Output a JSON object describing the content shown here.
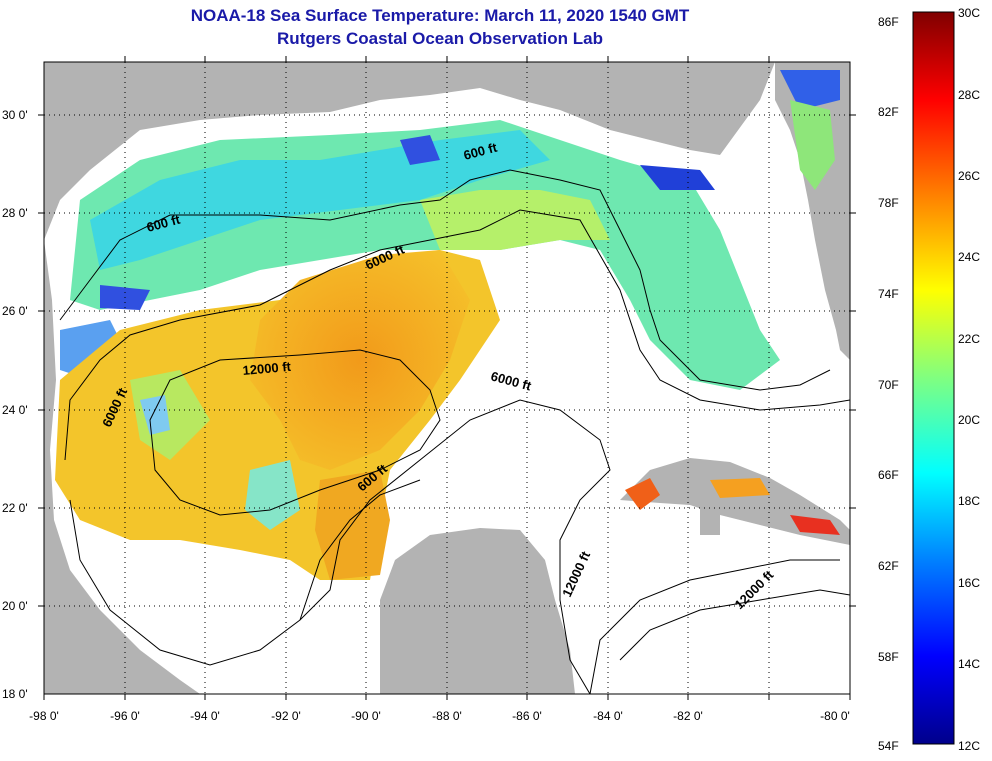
{
  "title_line1": "NOAA-18 Sea Surface Temperature:  March 11, 2020 1540 GMT",
  "title_line2": "Rutgers Coastal Ocean Observation Lab",
  "map": {
    "lat_labels": [
      "30 0'",
      "28 0'",
      "26 0'",
      "24 0'",
      "22 0'",
      "20 0'",
      "18 0'"
    ],
    "lon_labels": [
      "-98 0'",
      "-96 0'",
      "-94 0'",
      "-92 0'",
      "-90 0'",
      "-88 0'",
      "-86 0'",
      "-84 0'",
      "-82 0'",
      "-80 0'"
    ],
    "contour_labels": [
      "600 ft",
      "600 ft",
      "6000 ft",
      "12000 ft",
      "6000 ft",
      "6000 ft",
      "600 ft",
      "12000 ft",
      "12000 ft"
    ],
    "colors": {
      "land": "#b3b3b3",
      "cloud": "#ffffff"
    }
  },
  "colorbar": {
    "fahrenheit_labels": [
      "86F",
      "82F",
      "78F",
      "74F",
      "70F",
      "66F",
      "62F",
      "58F",
      "54F"
    ],
    "celsius_labels": [
      "30C",
      "28C",
      "26C",
      "24C",
      "22C",
      "20C",
      "18C",
      "16C",
      "14C",
      "12C"
    ],
    "gradient": [
      "#00008b",
      "#0000ff",
      "#0080ff",
      "#00ffff",
      "#80ff80",
      "#ffff00",
      "#ff8000",
      "#ff0000",
      "#800000"
    ]
  }
}
